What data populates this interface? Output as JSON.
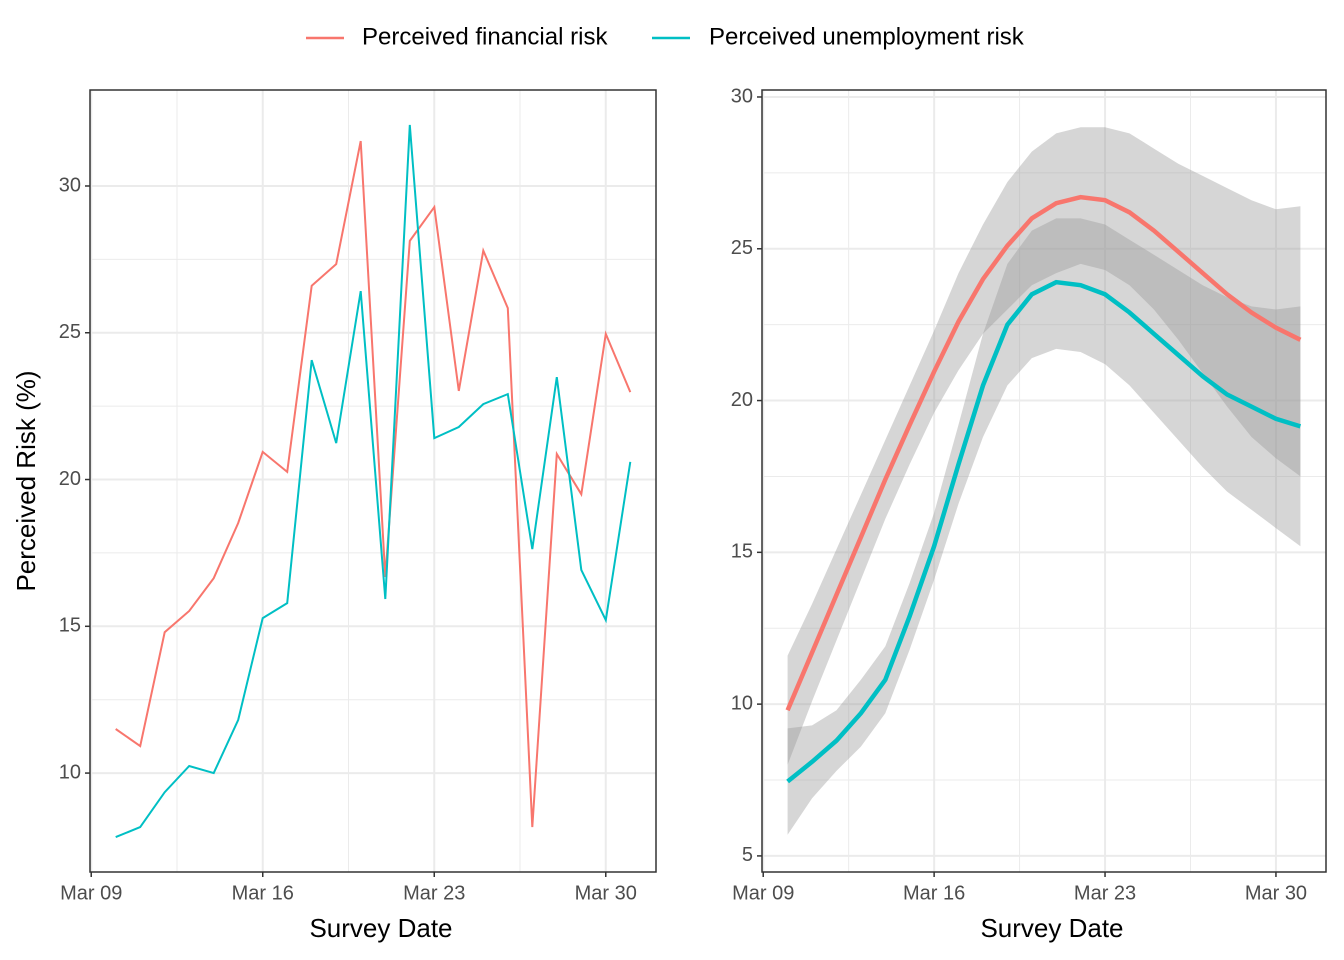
{
  "chart_data": [
    {
      "type": "line",
      "x_label": "Survey Date",
      "y_label": "Perceived Risk (%)",
      "x": [
        10,
        11,
        12,
        13,
        14,
        15,
        16,
        17,
        18,
        19,
        20,
        21,
        22,
        23,
        24,
        25,
        26,
        27,
        28,
        29,
        30,
        31
      ],
      "series": [
        {
          "name": "Perceived financial risk",
          "color": "#F8766D",
          "values": [
            11.5,
            10.92,
            14.8,
            15.52,
            16.64,
            18.52,
            20.94,
            20.26,
            26.6,
            27.34,
            31.53,
            16.68,
            28.13,
            29.28,
            23.02,
            27.8,
            25.84,
            8.16,
            20.87,
            19.5,
            24.96,
            22.98
          ]
        },
        {
          "name": "Perceived unemployment risk",
          "color": "#00BFC4",
          "values": [
            7.82,
            8.16,
            9.35,
            10.24,
            10.0,
            11.81,
            15.28,
            15.79,
            24.07,
            21.24,
            26.42,
            15.93,
            32.08,
            21.41,
            21.79,
            22.57,
            22.91,
            17.63,
            23.49,
            16.92,
            15.21,
            20.6
          ]
        }
      ],
      "xlim": [
        8.95,
        32.05
      ],
      "xticks": [
        {
          "value": 9,
          "label": "Mar 09"
        },
        {
          "value": 16,
          "label": "Mar 16"
        },
        {
          "value": 23,
          "label": "Mar 23"
        },
        {
          "value": 30,
          "label": "Mar 30"
        }
      ],
      "ylim": [
        6.63,
        33.27
      ],
      "yticks": [
        10,
        15,
        20,
        25,
        30
      ],
      "grid": true,
      "legend": "top"
    },
    {
      "type": "smooth",
      "x_label": "Survey Date",
      "x": [
        10,
        11,
        12,
        13,
        14,
        15,
        16,
        17,
        18,
        19,
        20,
        21,
        22,
        23,
        24,
        25,
        26,
        27,
        28,
        29,
        30,
        31
      ],
      "series": [
        {
          "color": "#F8766D",
          "values": [
            9.8,
            11.7,
            13.6,
            15.5,
            17.4,
            19.2,
            20.95,
            22.6,
            24.0,
            25.1,
            26.0,
            26.5,
            26.7,
            26.6,
            26.2,
            25.6,
            24.9,
            24.2,
            23.5,
            22.9,
            22.4,
            22.0
          ],
          "lower": [
            8.0,
            10.1,
            12.1,
            14.1,
            16.1,
            17.9,
            19.6,
            21.0,
            22.2,
            23.0,
            23.8,
            24.2,
            24.5,
            24.3,
            23.8,
            23.0,
            22.0,
            20.9,
            19.8,
            18.8,
            18.1,
            17.5
          ],
          "upper": [
            11.6,
            13.3,
            15.1,
            16.9,
            18.7,
            20.5,
            22.3,
            24.2,
            25.8,
            27.2,
            28.2,
            28.8,
            29.0,
            29.0,
            28.8,
            28.3,
            27.8,
            27.4,
            27.0,
            26.6,
            26.3,
            26.4
          ]
        },
        {
          "color": "#00BFC4",
          "values": [
            7.45,
            8.1,
            8.8,
            9.7,
            10.8,
            12.9,
            15.2,
            17.9,
            20.5,
            22.5,
            23.5,
            23.9,
            23.8,
            23.5,
            22.9,
            22.2,
            21.5,
            20.8,
            20.2,
            19.8,
            19.4,
            19.15
          ],
          "lower": [
            5.7,
            6.9,
            7.8,
            8.6,
            9.7,
            11.8,
            14.1,
            16.6,
            18.8,
            20.5,
            21.4,
            21.7,
            21.6,
            21.2,
            20.5,
            19.6,
            18.7,
            17.8,
            17.0,
            16.4,
            15.8,
            15.2
          ],
          "upper": [
            9.2,
            9.3,
            9.8,
            10.8,
            11.9,
            14.0,
            16.3,
            19.2,
            22.2,
            24.5,
            25.6,
            26.0,
            26.0,
            25.8,
            25.3,
            24.8,
            24.3,
            23.8,
            23.4,
            23.1,
            23.0,
            23.1
          ]
        }
      ],
      "xlim": [
        8.95,
        32.05
      ],
      "xticks": [
        {
          "value": 9,
          "label": "Mar 09"
        },
        {
          "value": 16,
          "label": "Mar 16"
        },
        {
          "value": 23,
          "label": "Mar 23"
        },
        {
          "value": 30,
          "label": "Mar 30"
        }
      ],
      "ylim": [
        4.47,
        30.23
      ],
      "yticks": [
        5,
        10,
        15,
        20,
        25,
        30
      ],
      "grid": true
    }
  ]
}
